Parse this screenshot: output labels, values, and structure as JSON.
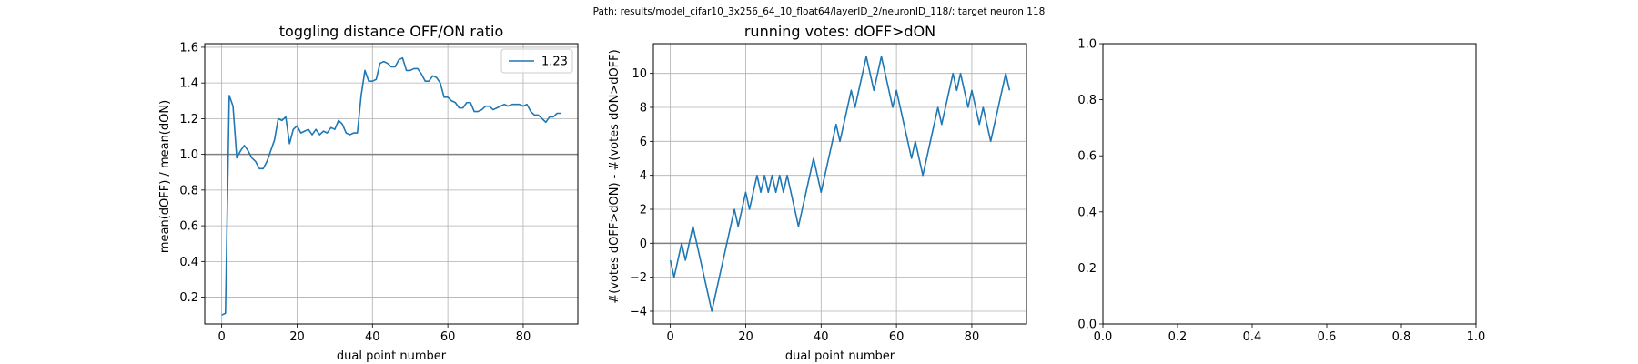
{
  "suptitle": "Path: results/model_cifar10_3x256_64_10_float64/layerID_2/neuronID_118/; target neuron 118",
  "chart_data": [
    {
      "type": "line",
      "title": "toggling distance OFF/ON ratio",
      "xlabel": "dual point number",
      "ylabel": "mean(dOFF) / mean(dON)",
      "xlim": [
        -4.5,
        94.5
      ],
      "ylim": [
        0.05,
        1.62
      ],
      "xticks": [
        0,
        20,
        40,
        60,
        80
      ],
      "yticks": [
        0.2,
        0.4,
        0.6,
        0.8,
        1.0,
        1.2,
        1.4,
        1.6
      ],
      "ytick_labels": [
        "0.2",
        "0.4",
        "0.6",
        "0.8",
        "1.0",
        "1.2",
        "1.4",
        "1.6"
      ],
      "grid": true,
      "hline": 1.0,
      "legend": {
        "position": "top-right",
        "entries": [
          "1.23"
        ]
      },
      "series": [
        {
          "name": "1.23",
          "color": "#1f77b4",
          "x": [
            0,
            1,
            2,
            3,
            4,
            5,
            6,
            7,
            8,
            9,
            10,
            11,
            12,
            13,
            14,
            15,
            16,
            17,
            18,
            19,
            20,
            21,
            22,
            23,
            24,
            25,
            26,
            27,
            28,
            29,
            30,
            31,
            32,
            33,
            34,
            35,
            36,
            37,
            38,
            39,
            40,
            41,
            42,
            43,
            44,
            45,
            46,
            47,
            48,
            49,
            50,
            51,
            52,
            53,
            54,
            55,
            56,
            57,
            58,
            59,
            60,
            61,
            62,
            63,
            64,
            65,
            66,
            67,
            68,
            69,
            70,
            71,
            72,
            73,
            74,
            75,
            76,
            77,
            78,
            79,
            80,
            81,
            82,
            83,
            84,
            85,
            86,
            87,
            88,
            89,
            90
          ],
          "y": [
            0.1,
            0.11,
            1.33,
            1.27,
            0.98,
            1.02,
            1.05,
            1.02,
            0.98,
            0.96,
            0.92,
            0.92,
            0.96,
            1.02,
            1.08,
            1.2,
            1.19,
            1.21,
            1.06,
            1.14,
            1.16,
            1.12,
            1.13,
            1.14,
            1.11,
            1.14,
            1.11,
            1.13,
            1.12,
            1.15,
            1.14,
            1.19,
            1.17,
            1.12,
            1.11,
            1.12,
            1.12,
            1.33,
            1.47,
            1.41,
            1.41,
            1.42,
            1.51,
            1.52,
            1.51,
            1.49,
            1.49,
            1.53,
            1.54,
            1.47,
            1.47,
            1.48,
            1.48,
            1.45,
            1.41,
            1.41,
            1.44,
            1.43,
            1.4,
            1.32,
            1.32,
            1.3,
            1.29,
            1.26,
            1.26,
            1.29,
            1.29,
            1.24,
            1.24,
            1.25,
            1.27,
            1.27,
            1.25,
            1.26,
            1.27,
            1.28,
            1.27,
            1.28,
            1.28,
            1.28,
            1.27,
            1.28,
            1.24,
            1.22,
            1.22,
            1.2,
            1.18,
            1.21,
            1.21,
            1.23,
            1.23
          ]
        }
      ]
    },
    {
      "type": "line",
      "title": "running votes: dOFF>dON",
      "xlabel": "dual point number",
      "ylabel": "#(votes dOFF>dON) - #(votes dON>dOFF)",
      "xlim": [
        -4.5,
        94.5
      ],
      "ylim": [
        -4.75,
        11.75
      ],
      "xticks": [
        0,
        20,
        40,
        60,
        80
      ],
      "yticks": [
        -4,
        -2,
        0,
        2,
        4,
        6,
        8,
        10
      ],
      "ytick_labels": [
        "−4",
        "−2",
        "0",
        "2",
        "4",
        "6",
        "8",
        "10"
      ],
      "grid": true,
      "hline": 0,
      "series": [
        {
          "color": "#1f77b4",
          "x": [
            0,
            1,
            2,
            3,
            4,
            5,
            6,
            7,
            8,
            9,
            10,
            11,
            12,
            13,
            14,
            15,
            16,
            17,
            18,
            19,
            20,
            21,
            22,
            23,
            24,
            25,
            26,
            27,
            28,
            29,
            30,
            31,
            32,
            33,
            34,
            35,
            36,
            37,
            38,
            39,
            40,
            41,
            42,
            43,
            44,
            45,
            46,
            47,
            48,
            49,
            50,
            51,
            52,
            53,
            54,
            55,
            56,
            57,
            58,
            59,
            60,
            61,
            62,
            63,
            64,
            65,
            66,
            67,
            68,
            69,
            70,
            71,
            72,
            73,
            74,
            75,
            76,
            77,
            78,
            79,
            80,
            81,
            82,
            83,
            84,
            85,
            86,
            87,
            88,
            89,
            90
          ],
          "y": [
            -1,
            -2,
            -1,
            0,
            -1,
            0,
            1,
            0,
            -1,
            -2,
            -3,
            -4,
            -3,
            -2,
            -1,
            0,
            1,
            2,
            1,
            2,
            3,
            2,
            3,
            4,
            3,
            4,
            3,
            4,
            3,
            4,
            3,
            4,
            3,
            2,
            1,
            2,
            3,
            4,
            5,
            4,
            3,
            4,
            5,
            6,
            7,
            6,
            7,
            8,
            9,
            8,
            9,
            10,
            11,
            10,
            9,
            10,
            11,
            10,
            9,
            8,
            9,
            8,
            7,
            6,
            5,
            6,
            5,
            4,
            5,
            6,
            7,
            8,
            7,
            8,
            9,
            10,
            9,
            10,
            9,
            8,
            9,
            8,
            7,
            8,
            7,
            6,
            7,
            8,
            9,
            10,
            9
          ]
        }
      ]
    },
    {
      "type": "line",
      "title": "",
      "xlabel": "",
      "ylabel": "",
      "xlim": [
        0,
        1
      ],
      "ylim": [
        0,
        1
      ],
      "xticks": [
        0,
        0.2,
        0.4,
        0.6,
        0.8,
        1.0
      ],
      "yticks": [
        0,
        0.2,
        0.4,
        0.6,
        0.8,
        1.0
      ],
      "xtick_labels": [
        "0.0",
        "0.2",
        "0.4",
        "0.6",
        "0.8",
        "1.0"
      ],
      "ytick_labels": [
        "0.0",
        "0.2",
        "0.4",
        "0.6",
        "0.8",
        "1.0"
      ],
      "grid": false,
      "series": []
    }
  ]
}
